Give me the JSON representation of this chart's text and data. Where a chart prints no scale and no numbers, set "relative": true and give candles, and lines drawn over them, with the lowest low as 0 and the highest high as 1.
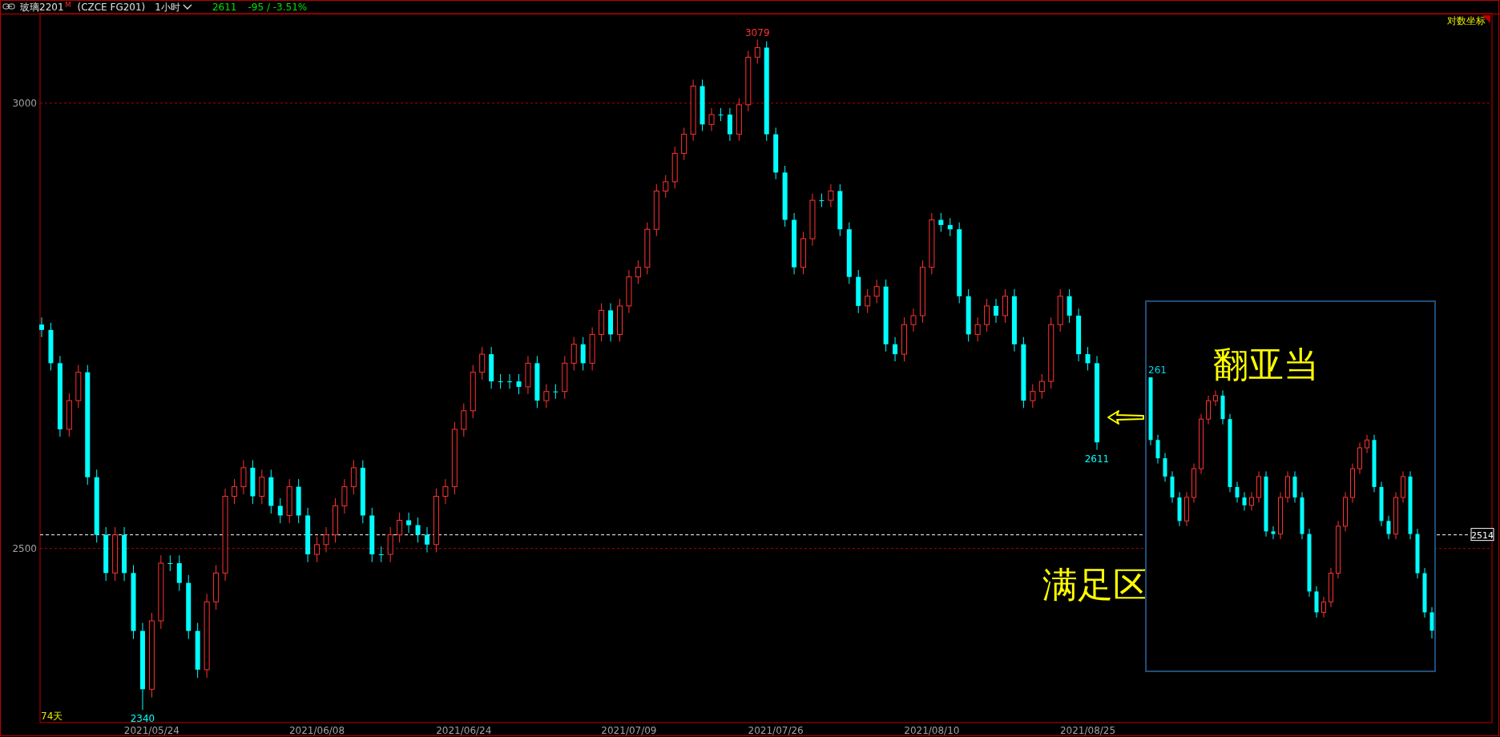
{
  "chart_data": [
    {
      "type": "candlestick",
      "title": "玻璃2201",
      "log": true,
      "ylim": [
        2328,
        3112
      ],
      "yticks": [
        2500,
        3000
      ],
      "grid": "y",
      "categories": [
        null,
        null,
        null,
        null,
        null,
        null,
        null,
        null,
        null,
        null,
        null,
        null,
        "2021/05/24",
        null,
        null,
        null,
        null,
        null,
        null,
        null,
        null,
        null,
        null,
        null,
        null,
        null,
        null,
        null,
        null,
        null,
        "2021/06/08",
        null,
        null,
        null,
        null,
        null,
        null,
        null,
        null,
        null,
        null,
        null,
        null,
        null,
        null,
        null,
        "2021/06/24",
        null,
        null,
        null,
        null,
        null,
        null,
        null,
        null,
        null,
        null,
        null,
        null,
        null,
        null,
        null,
        null,
        null,
        "2021/07/09",
        null,
        null,
        null,
        null,
        null,
        null,
        null,
        null,
        null,
        null,
        null,
        null,
        null,
        null,
        null,
        "2021/07/26",
        null,
        null,
        null,
        null,
        null,
        null,
        null,
        null,
        null,
        null,
        null,
        null,
        null,
        null,
        null,
        null,
        "2021/08/10",
        null,
        null,
        null,
        null,
        null,
        null,
        null,
        null,
        null,
        null,
        null,
        null,
        null,
        null,
        null,
        null,
        "2021/08/25",
        null
      ],
      "ohlc": [
        [
          2740,
          2748,
          2726,
          2734
        ],
        [
          2734,
          2742,
          2689,
          2697
        ],
        [
          2697,
          2705,
          2617,
          2625
        ],
        [
          2625,
          2664,
          2617,
          2656
        ],
        [
          2656,
          2695,
          2648,
          2687
        ],
        [
          2687,
          2695,
          2566,
          2574
        ],
        [
          2574,
          2582,
          2506,
          2514
        ],
        [
          2514,
          2522,
          2467,
          2475
        ],
        [
          2475,
          2522,
          2467,
          2514
        ],
        [
          2514,
          2522,
          2467,
          2475
        ],
        [
          2475,
          2483,
          2409,
          2417
        ],
        [
          2417,
          2425,
          2340,
          2360
        ],
        [
          2360,
          2435,
          2352,
          2427
        ],
        [
          2427,
          2493,
          2419,
          2485
        ],
        [
          2485,
          2493,
          2477,
          2485
        ],
        [
          2485,
          2493,
          2457,
          2465
        ],
        [
          2465,
          2473,
          2409,
          2417
        ],
        [
          2417,
          2425,
          2371,
          2379
        ],
        [
          2379,
          2454,
          2371,
          2446
        ],
        [
          2446,
          2483,
          2438,
          2475
        ],
        [
          2475,
          2562,
          2467,
          2554
        ],
        [
          2554,
          2572,
          2546,
          2564
        ],
        [
          2564,
          2592,
          2556,
          2584
        ],
        [
          2584,
          2592,
          2546,
          2554
        ],
        [
          2554,
          2582,
          2546,
          2574
        ],
        [
          2574,
          2582,
          2536,
          2544
        ],
        [
          2544,
          2552,
          2526,
          2534
        ],
        [
          2534,
          2572,
          2526,
          2564
        ],
        [
          2564,
          2572,
          2526,
          2534
        ],
        [
          2534,
          2542,
          2486,
          2494
        ],
        [
          2494,
          2512,
          2486,
          2504
        ],
        [
          2504,
          2522,
          2496,
          2514
        ],
        [
          2514,
          2552,
          2506,
          2544
        ],
        [
          2544,
          2572,
          2536,
          2564
        ],
        [
          2564,
          2592,
          2556,
          2584
        ],
        [
          2584,
          2592,
          2526,
          2534
        ],
        [
          2534,
          2542,
          2486,
          2494
        ],
        [
          2494,
          2502,
          2486,
          2494
        ],
        [
          2494,
          2522,
          2486,
          2514
        ],
        [
          2514,
          2537,
          2506,
          2529
        ],
        [
          2529,
          2537,
          2516,
          2524
        ],
        [
          2524,
          2532,
          2506,
          2514
        ],
        [
          2514,
          2522,
          2496,
          2504
        ],
        [
          2504,
          2562,
          2496,
          2554
        ],
        [
          2554,
          2572,
          2546,
          2564
        ],
        [
          2564,
          2633,
          2556,
          2625
        ],
        [
          2625,
          2653,
          2617,
          2645
        ],
        [
          2645,
          2695,
          2637,
          2687
        ],
        [
          2687,
          2715,
          2679,
          2707
        ],
        [
          2707,
          2715,
          2669,
          2677
        ],
        [
          2677,
          2685,
          2669,
          2677
        ],
        [
          2677,
          2685,
          2669,
          2677
        ],
        [
          2677,
          2685,
          2663,
          2671
        ],
        [
          2671,
          2705,
          2663,
          2697
        ],
        [
          2697,
          2705,
          2648,
          2656
        ],
        [
          2656,
          2674,
          2648,
          2666
        ],
        [
          2666,
          2674,
          2658,
          2666
        ],
        [
          2666,
          2705,
          2658,
          2697
        ],
        [
          2697,
          2726,
          2689,
          2718
        ],
        [
          2718,
          2726,
          2689,
          2697
        ],
        [
          2697,
          2737,
          2689,
          2729
        ],
        [
          2729,
          2764,
          2721,
          2756
        ],
        [
          2756,
          2764,
          2721,
          2729
        ],
        [
          2729,
          2769,
          2721,
          2761
        ],
        [
          2761,
          2802,
          2753,
          2794
        ],
        [
          2794,
          2813,
          2786,
          2805
        ],
        [
          2805,
          2857,
          2797,
          2849
        ],
        [
          2849,
          2902,
          2841,
          2894
        ],
        [
          2894,
          2913,
          2886,
          2905
        ],
        [
          2905,
          2947,
          2897,
          2939
        ],
        [
          2939,
          2970,
          2931,
          2962
        ],
        [
          2962,
          3029,
          2954,
          3021
        ],
        [
          3021,
          3029,
          2966,
          2974
        ],
        [
          2974,
          2994,
          2966,
          2986
        ],
        [
          2986,
          2994,
          2978,
          2986
        ],
        [
          2986,
          2994,
          2954,
          2962
        ],
        [
          2962,
          3006,
          2954,
          2998
        ],
        [
          2998,
          3065,
          2990,
          3057
        ],
        [
          3057,
          3079,
          3049,
          3069
        ],
        [
          3069,
          3077,
          2954,
          2962
        ],
        [
          2962,
          2970,
          2908,
          2916
        ],
        [
          2916,
          2924,
          2852,
          2860
        ],
        [
          2860,
          2868,
          2797,
          2805
        ],
        [
          2805,
          2846,
          2797,
          2838
        ],
        [
          2838,
          2891,
          2830,
          2883
        ],
        [
          2883,
          2891,
          2875,
          2883
        ],
        [
          2883,
          2902,
          2875,
          2894
        ],
        [
          2894,
          2902,
          2841,
          2849
        ],
        [
          2849,
          2857,
          2786,
          2794
        ],
        [
          2794,
          2802,
          2753,
          2761
        ],
        [
          2761,
          2780,
          2753,
          2772
        ],
        [
          2772,
          2791,
          2764,
          2783
        ],
        [
          2783,
          2791,
          2710,
          2718
        ],
        [
          2718,
          2726,
          2699,
          2707
        ],
        [
          2707,
          2748,
          2699,
          2740
        ],
        [
          2740,
          2758,
          2732,
          2750
        ],
        [
          2750,
          2813,
          2742,
          2805
        ],
        [
          2805,
          2868,
          2797,
          2860
        ],
        [
          2860,
          2868,
          2846,
          2854
        ],
        [
          2854,
          2862,
          2841,
          2849
        ],
        [
          2849,
          2857,
          2764,
          2772
        ],
        [
          2772,
          2780,
          2721,
          2729
        ],
        [
          2729,
          2748,
          2721,
          2740
        ],
        [
          2740,
          2769,
          2732,
          2761
        ],
        [
          2761,
          2769,
          2742,
          2750
        ],
        [
          2750,
          2780,
          2742,
          2772
        ],
        [
          2772,
          2780,
          2710,
          2718
        ],
        [
          2718,
          2726,
          2648,
          2656
        ],
        [
          2656,
          2674,
          2648,
          2666
        ],
        [
          2666,
          2685,
          2658,
          2677
        ],
        [
          2677,
          2748,
          2669,
          2740
        ],
        [
          2740,
          2780,
          2732,
          2772
        ],
        [
          2772,
          2780,
          2742,
          2750
        ],
        [
          2750,
          2758,
          2699,
          2707
        ],
        [
          2707,
          2715,
          2689,
          2697
        ],
        [
          2697,
          2705,
          2603,
          2611
        ]
      ],
      "colors": [
        "#00ffff",
        "#00ffff",
        "#00ffff",
        "#ff3232",
        "#ff3232",
        "#00ffff",
        "#00ffff",
        "#00ffff",
        "#ff3232",
        "#00ffff",
        "#00ffff",
        "#00ffff",
        "#ff3232",
        "#ff3232",
        "#00ffff",
        "#00ffff",
        "#00ffff",
        "#00ffff",
        "#ff3232",
        "#ff3232",
        "#ff3232",
        "#ff3232",
        "#ff3232",
        "#00ffff",
        "#ff3232",
        "#00ffff",
        "#00ffff",
        "#ff3232",
        "#00ffff",
        "#00ffff",
        "#ff3232",
        "#ff3232",
        "#ff3232",
        "#ff3232",
        "#ff3232",
        "#00ffff",
        "#00ffff",
        "#00ffff",
        "#ff3232",
        "#ff3232",
        "#00ffff",
        "#00ffff",
        "#00ffff",
        "#ff3232",
        "#ff3232",
        "#ff3232",
        "#ff3232",
        "#ff3232",
        "#ff3232",
        "#00ffff",
        "#00ffff",
        "#00ffff",
        "#00ffff",
        "#ff3232",
        "#00ffff",
        "#ff3232",
        "#00ffff",
        "#ff3232",
        "#ff3232",
        "#00ffff",
        "#ff3232",
        "#ff3232",
        "#00ffff",
        "#ff3232",
        "#ff3232",
        "#ff3232",
        "#ff3232",
        "#ff3232",
        "#ff3232",
        "#ff3232",
        "#ff3232",
        "#ff3232",
        "#00ffff",
        "#ff3232",
        "#00ffff",
        "#00ffff",
        "#ff3232",
        "#ff3232",
        "#ff3232",
        "#00ffff",
        "#00ffff",
        "#00ffff",
        "#00ffff",
        "#ff3232",
        "#ff3232",
        "#00ffff",
        "#ff3232",
        "#00ffff",
        "#00ffff",
        "#00ffff",
        "#ff3232",
        "#ff3232",
        "#00ffff",
        "#00ffff",
        "#ff3232",
        "#ff3232",
        "#ff3232",
        "#ff3232",
        "#00ffff",
        "#00ffff",
        "#00ffff",
        "#00ffff",
        "#ff3232",
        "#ff3232",
        "#00ffff",
        "#ff3232",
        "#00ffff",
        "#00ffff",
        "#ff3232",
        "#ff3232",
        "#ff3232",
        "#ff3232",
        "#00ffff",
        "#00ffff",
        "#00ffff",
        "#00ffff"
      ],
      "ref_lines": [
        {
          "axis": "y",
          "value": 2514,
          "label": "2514",
          "color": "#ffffff",
          "line_style": "dashed"
        }
      ],
      "annotations": [
        "M",
        "(CZCE FG201)",
        "1小时",
        "2611",
        "-95 / -3.51%",
        "对数坐标",
        "74天",
        {
          "text": "3079",
          "y": 3079
        },
        {
          "text": "2340",
          "y": 2340
        },
        {
          "text": "2611",
          "y": 2611
        },
        "满足区"
      ]
    },
    {
      "type": "candlestick",
      "relative": true,
      "categories": [
        null,
        null,
        null,
        null,
        null,
        null,
        null,
        null,
        null,
        null,
        null,
        null,
        null,
        null,
        null,
        null,
        null,
        null,
        null,
        null,
        null,
        null,
        null,
        null,
        null,
        null,
        null,
        null,
        null,
        null,
        null,
        null,
        null,
        null,
        null,
        null,
        null,
        null,
        null,
        null
      ],
      "ohlc": [
        [
          1,
          1,
          0.74,
          0.76
        ],
        [
          0.76,
          0.78,
          0.67,
          0.69
        ],
        [
          0.69,
          0.71,
          0.6,
          0.62
        ],
        [
          0.62,
          0.64,
          0.52,
          0.54
        ],
        [
          0.54,
          0.56,
          0.43,
          0.45
        ],
        [
          0.45,
          0.56,
          0.43,
          0.54
        ],
        [
          0.54,
          0.67,
          0.52,
          0.65
        ],
        [
          0.65,
          0.86,
          0.63,
          0.84
        ],
        [
          0.84,
          0.93,
          0.82,
          0.91
        ],
        [
          0.91,
          0.95,
          0.89,
          0.93
        ],
        [
          0.93,
          0.95,
          0.82,
          0.84
        ],
        [
          0.84,
          0.86,
          0.56,
          0.58
        ],
        [
          0.58,
          0.6,
          0.52,
          0.54
        ],
        [
          0.54,
          0.56,
          0.49,
          0.51
        ],
        [
          0.51,
          0.56,
          0.49,
          0.54
        ],
        [
          0.54,
          0.64,
          0.52,
          0.62
        ],
        [
          0.62,
          0.64,
          0.39,
          0.41
        ],
        [
          0.41,
          0.43,
          0.38,
          0.4
        ],
        [
          0.4,
          0.56,
          0.38,
          0.54
        ],
        [
          0.54,
          0.64,
          0.52,
          0.62
        ],
        [
          0.62,
          0.64,
          0.52,
          0.54
        ],
        [
          0.54,
          0.56,
          0.38,
          0.4
        ],
        [
          0.4,
          0.42,
          0.16,
          0.18
        ],
        [
          0.18,
          0.2,
          0.08,
          0.1
        ],
        [
          0.1,
          0.16,
          0.08,
          0.14
        ],
        [
          0.14,
          0.27,
          0.12,
          0.25
        ],
        [
          0.25,
          0.45,
          0.23,
          0.43
        ],
        [
          0.43,
          0.56,
          0.41,
          0.54
        ],
        [
          0.54,
          0.67,
          0.52,
          0.65
        ],
        [
          0.65,
          0.75,
          0.63,
          0.73
        ],
        [
          0.73,
          0.78,
          0.71,
          0.76
        ],
        [
          0.76,
          0.78,
          0.56,
          0.58
        ],
        [
          0.58,
          0.6,
          0.43,
          0.45
        ],
        [
          0.45,
          0.47,
          0.38,
          0.4
        ],
        [
          0.4,
          0.56,
          0.38,
          0.54
        ],
        [
          0.54,
          0.64,
          0.52,
          0.62
        ],
        [
          0.62,
          0.64,
          0.38,
          0.4
        ],
        [
          0.4,
          0.42,
          0.23,
          0.25
        ],
        [
          0.25,
          0.27,
          0.08,
          0.1
        ],
        [
          0.1,
          0.12,
          0,
          0.03
        ]
      ],
      "colors": [
        "#00ffff",
        "#00ffff",
        "#00ffff",
        "#00ffff",
        "#00ffff",
        "#ff3232",
        "#ff3232",
        "#ff3232",
        "#ff3232",
        "#ff3232",
        "#00ffff",
        "#00ffff",
        "#00ffff",
        "#00ffff",
        "#ff3232",
        "#ff3232",
        "#00ffff",
        "#00ffff",
        "#ff3232",
        "#ff3232",
        "#00ffff",
        "#00ffff",
        "#00ffff",
        "#00ffff",
        "#ff3232",
        "#ff3232",
        "#ff3232",
        "#ff3232",
        "#ff3232",
        "#ff3232",
        "#ff3232",
        "#00ffff",
        "#00ffff",
        "#00ffff",
        "#ff3232",
        "#ff3232",
        "#00ffff",
        "#00ffff",
        "#00ffff",
        "#00ffff"
      ],
      "annotations": [
        "261",
        "翻亚当"
      ]
    }
  ]
}
